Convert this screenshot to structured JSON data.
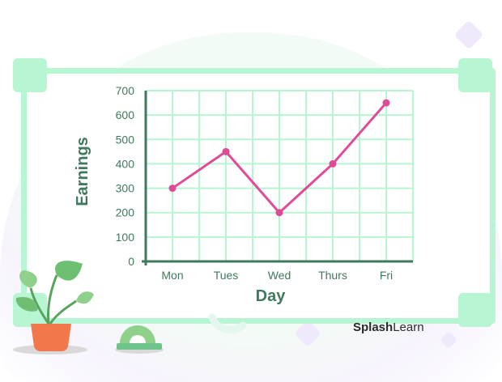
{
  "brand": {
    "strong": "Splash",
    "light": "Learn"
  },
  "colors": {
    "line": "#e04b97",
    "grid": "#b7f5d3",
    "axis": "#3f7a5c",
    "frame": "#b7f5d3"
  },
  "chart_data": {
    "type": "line",
    "categories": [
      "Mon",
      "Tues",
      "Wed",
      "Thurs",
      "Fri"
    ],
    "series": [
      {
        "values": [
          300,
          450,
          200,
          400,
          650
        ]
      }
    ],
    "xlabel": "Day",
    "ylabel": "Earnings",
    "ylim": [
      0,
      700
    ],
    "yticks": [
      0,
      100,
      200,
      300,
      400,
      500,
      600,
      700
    ],
    "grid": true,
    "legend": "none"
  }
}
